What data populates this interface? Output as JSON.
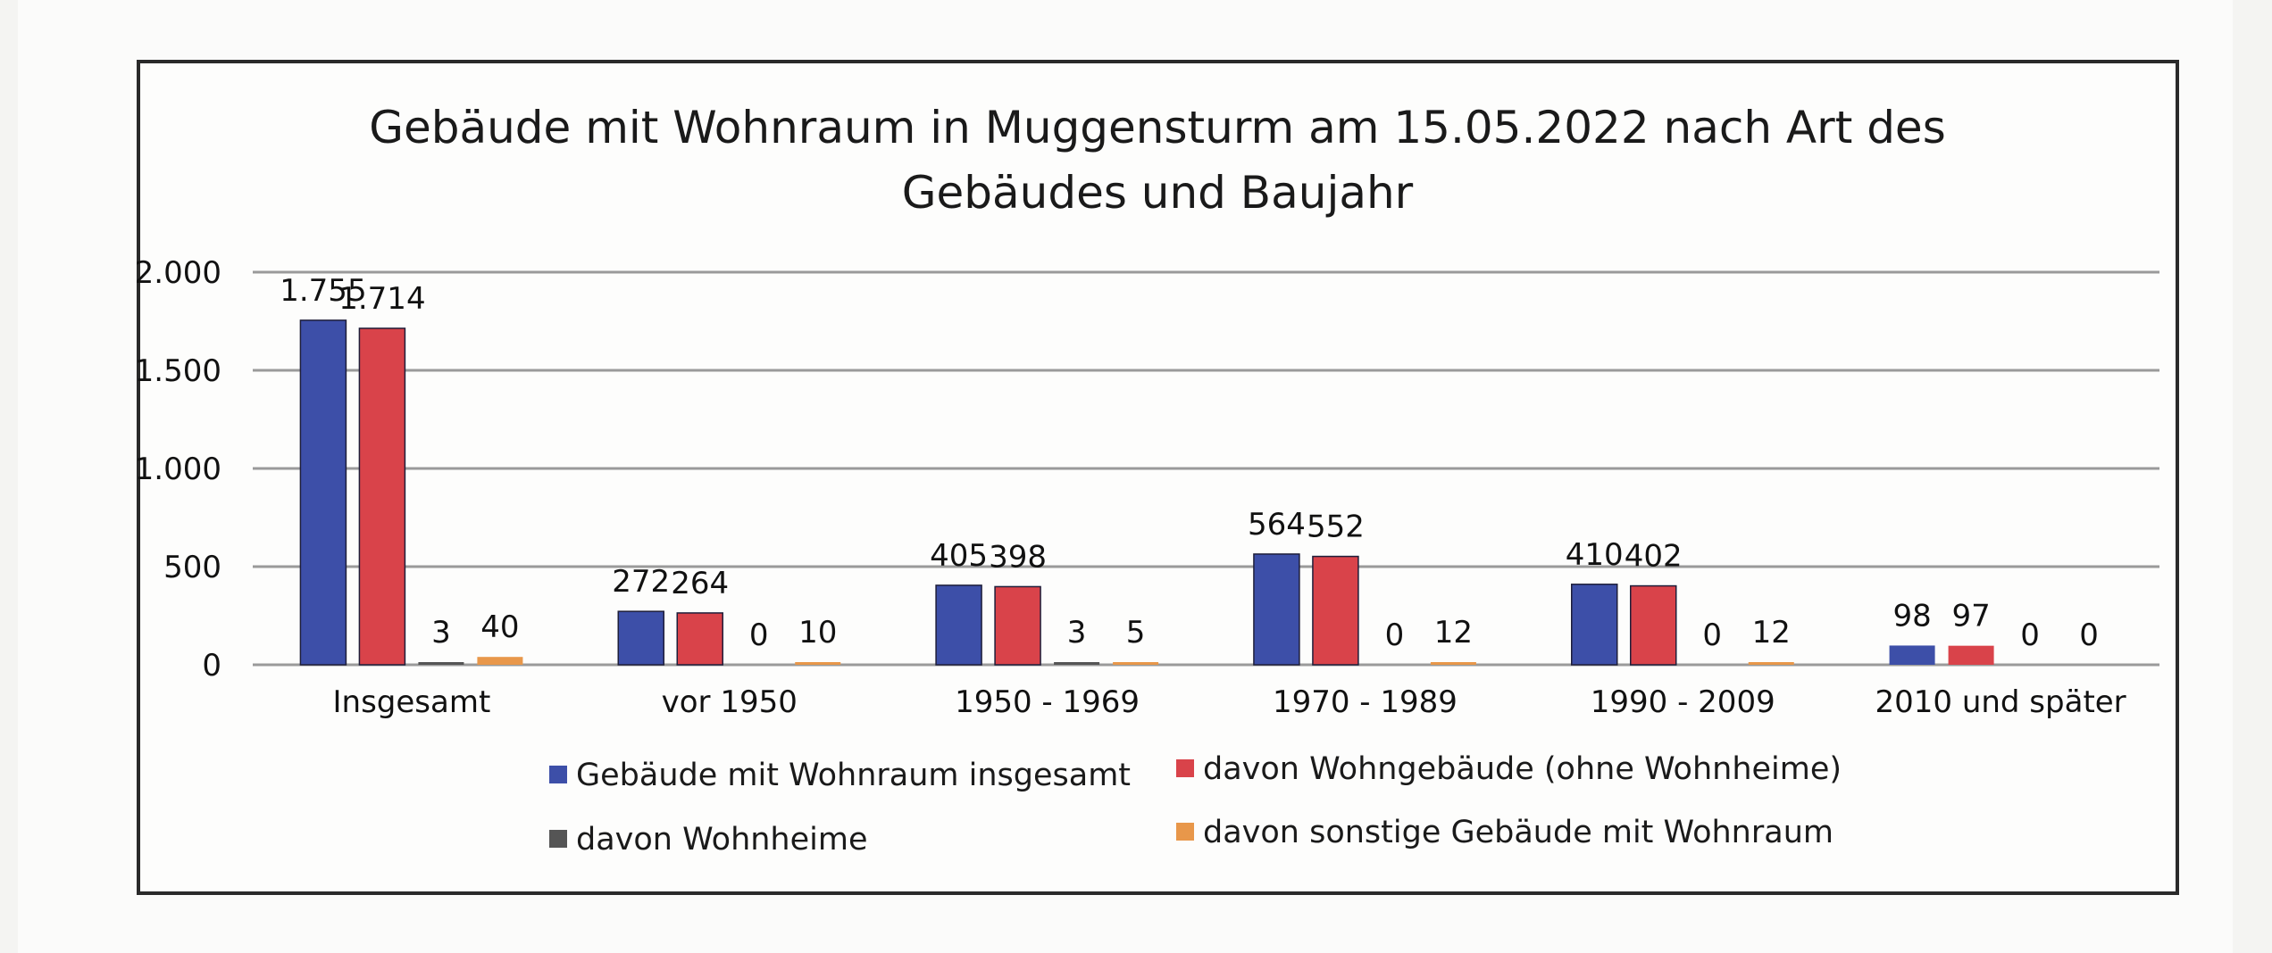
{
  "chart_data": {
    "type": "bar",
    "title": "Gebäude mit Wohnraum in Muggensturm am 15.05.2022 nach Art des Gebäudes und Baujahr",
    "title_lines": [
      "Gebäude mit Wohnraum in Muggensturm am 15.05.2022 nach Art des",
      "Gebäudes und Baujahr"
    ],
    "xlabel": "",
    "ylabel": "",
    "ylim": [
      0,
      2000
    ],
    "yticks": [
      0,
      500,
      1000,
      1500,
      2000
    ],
    "ytick_labels": [
      "0",
      "500",
      "1.000",
      "1.500",
      "2.000"
    ],
    "grid": true,
    "legend_position": "bottom",
    "categories": [
      "Insgesamt",
      "vor 1950",
      "1950 - 1969",
      "1970 - 1989",
      "1990 - 2009",
      "2010 und später"
    ],
    "series": [
      {
        "name": "Gebäude mit Wohnraum insgesamt",
        "color": "#3d4fa8",
        "values": [
          1755,
          272,
          405,
          564,
          410,
          98
        ],
        "labels": [
          "1.755",
          "272",
          "405",
          "564",
          "410",
          "98"
        ]
      },
      {
        "name": "davon Wohngebäude (ohne Wohnheime)",
        "color": "#d9434a",
        "values": [
          1714,
          264,
          398,
          552,
          402,
          97
        ],
        "labels": [
          "1.714",
          "264",
          "398",
          "552",
          "402",
          "97"
        ]
      },
      {
        "name": "davon Wohnheime",
        "color": "#555555",
        "values": [
          3,
          0,
          3,
          0,
          0,
          0
        ],
        "labels": [
          "3",
          "0",
          "3",
          "0",
          "0",
          "0"
        ]
      },
      {
        "name": "davon sonstige Gebäude mit Wohnraum",
        "color": "#e8974a",
        "values": [
          40,
          10,
          5,
          12,
          12,
          0
        ],
        "labels": [
          "40",
          "10",
          "5",
          "12",
          "12",
          "0"
        ]
      }
    ]
  }
}
